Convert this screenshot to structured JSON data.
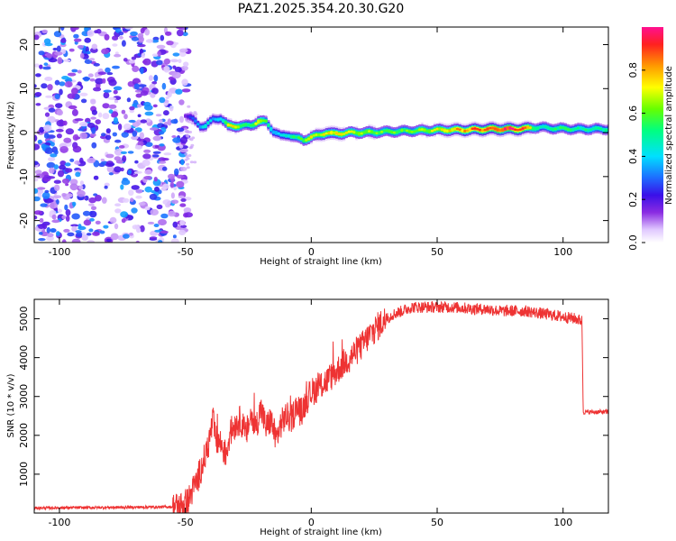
{
  "title": "PAZ1.2025.354.20.30.G20",
  "chart_data": [
    {
      "type": "heatmap",
      "name": "spectrogram",
      "xlabel": "Height of straight line (km)",
      "ylabel": "Frequency (Hz)",
      "xlim": [
        -110,
        118
      ],
      "ylim": [
        -25,
        24
      ],
      "xticks": [
        -100,
        -50,
        0,
        50,
        100
      ],
      "yticks": [
        20,
        10,
        0,
        -10,
        -20
      ],
      "colorbar": {
        "label": "Normalized spectral amplitude",
        "range": [
          0.0,
          1.0
        ],
        "ticks": [
          "0.0",
          "0.2",
          "0.4",
          "0.6",
          "0.8"
        ],
        "colormap": "rainbow (white-violet-blue-cyan-green-yellow-orange-red-magenta)"
      },
      "noise_region_x": [
        -110,
        -50
      ],
      "signal_track": {
        "x": [
          -50,
          -47,
          -44,
          -42,
          -39,
          -36,
          -33,
          -30,
          -27,
          -24,
          -21,
          -18,
          -15,
          -12,
          -9,
          -6,
          -3,
          0,
          3,
          6,
          9,
          15,
          20,
          30,
          40,
          50,
          60,
          70,
          80,
          85,
          88,
          91,
          95,
          100,
          105,
          110,
          118
        ],
        "freq": [
          4,
          3,
          1.5,
          1.5,
          3,
          3.3,
          1.5,
          1.5,
          1.5,
          1.7,
          2.5,
          2.5,
          0.3,
          -0.8,
          -0.5,
          -1.2,
          -1.7,
          -1,
          -0.6,
          0,
          -0.3,
          0,
          0,
          0.2,
          0.4,
          0.6,
          0.6,
          0.8,
          0.8,
          0.9,
          1.1,
          1.2,
          1.0,
          0.9,
          0.8,
          0.8,
          0.8
        ],
        "amplitude": [
          0.15,
          0.3,
          0.35,
          0.45,
          0.35,
          0.4,
          0.7,
          0.7,
          0.55,
          0.55,
          0.75,
          0.55,
          0.4,
          0.4,
          0.45,
          0.55,
          0.6,
          0.7,
          0.65,
          0.75,
          0.75,
          0.7,
          0.65,
          0.6,
          0.6,
          0.7,
          0.8,
          0.9,
          0.95,
          0.9,
          0.6,
          0.45,
          0.5,
          0.55,
          0.5,
          0.5,
          0.5
        ]
      }
    },
    {
      "type": "line",
      "name": "snr",
      "xlabel": "Height of straight line (km)",
      "ylabel": "SNR (10 * v/v)",
      "xlim": [
        -110,
        118
      ],
      "ylim": [
        0,
        5500
      ],
      "xticks": [
        -100,
        -50,
        0,
        50,
        100
      ],
      "yticks": [
        1000,
        2000,
        3000,
        4000,
        5000
      ],
      "color": "#ee3333",
      "series": [
        {
          "name": "SNR",
          "x": [
            -110,
            -90,
            -70,
            -55,
            -52,
            -49,
            -47,
            -45,
            -43,
            -41,
            -39,
            -38,
            -36,
            -34,
            -32,
            -30,
            -28,
            -26,
            -24,
            -22,
            -20,
            -18,
            -16,
            -14,
            -12,
            -10,
            -8,
            -6,
            -4,
            -2,
            0,
            4,
            8,
            12,
            16,
            20,
            24,
            28,
            32,
            36,
            40,
            45,
            50,
            55,
            60,
            65,
            70,
            75,
            80,
            85,
            90,
            95,
            100,
            105,
            107.5,
            108,
            110,
            114,
            118
          ],
          "y": [
            130,
            140,
            150,
            160,
            180,
            300,
            600,
            900,
            1300,
            1700,
            2400,
            1900,
            1800,
            1500,
            2100,
            2300,
            2400,
            2000,
            2500,
            2200,
            2700,
            2200,
            2400,
            1900,
            2300,
            2500,
            2400,
            2700,
            2600,
            2900,
            3100,
            3300,
            3500,
            3800,
            4050,
            4300,
            4650,
            4900,
            5100,
            5200,
            5300,
            5300,
            5300,
            5300,
            5280,
            5250,
            5250,
            5200,
            5200,
            5200,
            5150,
            5100,
            5050,
            5000,
            4950,
            2600,
            2600,
            2600,
            2600
          ]
        }
      ]
    }
  ]
}
